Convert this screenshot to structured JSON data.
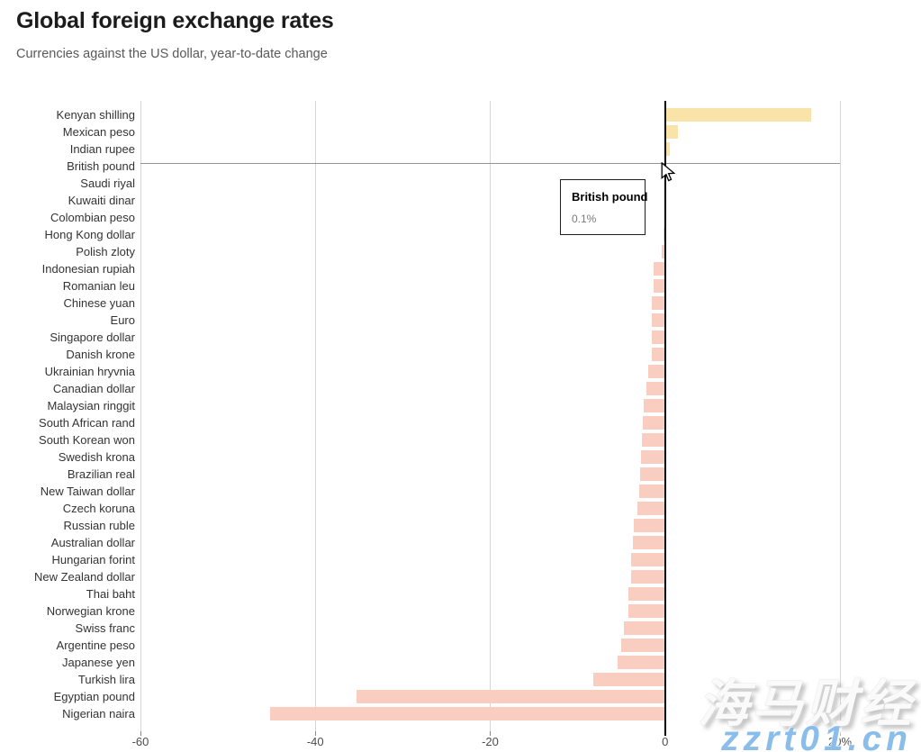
{
  "chart_data": {
    "type": "bar",
    "orientation": "horizontal",
    "title": "Global foreign exchange rates",
    "subtitle": "Currencies against the US dollar, year-to-date change",
    "unit": "%",
    "xlim": [
      -60,
      20
    ],
    "grid": true,
    "x_ticks": [
      {
        "value": -60,
        "label": "-60"
      },
      {
        "value": -40,
        "label": "-40"
      },
      {
        "value": -20,
        "label": "-20"
      },
      {
        "value": 0,
        "label": "0"
      },
      {
        "value": 20,
        "label": "20%"
      }
    ],
    "categories": [
      "Kenyan shilling",
      "Mexican peso",
      "Indian rupee",
      "British pound",
      "Saudi riyal",
      "Kuwaiti dinar",
      "Colombian peso",
      "Hong Kong dollar",
      "Polish zloty",
      "Indonesian rupiah",
      "Romanian leu",
      "Chinese yuan",
      "Euro",
      "Singapore dollar",
      "Danish krone",
      "Ukrainian hryvnia",
      "Canadian dollar",
      "Malaysian ringgit",
      "South African rand",
      "South Korean won",
      "Swedish krona",
      "Brazilian real",
      "New Taiwan dollar",
      "Czech koruna",
      "Russian ruble",
      "Australian dollar",
      "Hungarian forint",
      "New Zealand dollar",
      "Thai baht",
      "Norwegian krone",
      "Swiss franc",
      "Argentine peso",
      "Japanese yen",
      "Turkish lira",
      "Egyptian pound",
      "Nigerian naira"
    ],
    "values": [
      16.7,
      1.5,
      0.5,
      0.1,
      0.0,
      0.0,
      0.0,
      -0.2,
      -0.4,
      -1.3,
      -1.3,
      -1.5,
      -1.5,
      -1.5,
      -1.5,
      -1.9,
      -2.1,
      -2.4,
      -2.5,
      -2.7,
      -2.8,
      -2.9,
      -3.0,
      -3.2,
      -3.6,
      -3.7,
      -3.9,
      -3.9,
      -4.2,
      -4.2,
      -4.7,
      -5.0,
      -5.4,
      -8.2,
      -35.3,
      -45.2
    ],
    "highlighted_category": "British pound",
    "colors": {
      "positive_bar": "#FAE3A8",
      "negative_bar": "#F9CDBF",
      "zero_line": "#000000",
      "gridline": "#d6d6d6",
      "hover_line": "#949494"
    },
    "legend": null
  },
  "tooltip": {
    "title": "British pound",
    "value": "0.1%"
  },
  "watermark": {
    "line1": "海马财经",
    "line2": "zzrt01.cn",
    "url_color": "#8abde9"
  }
}
